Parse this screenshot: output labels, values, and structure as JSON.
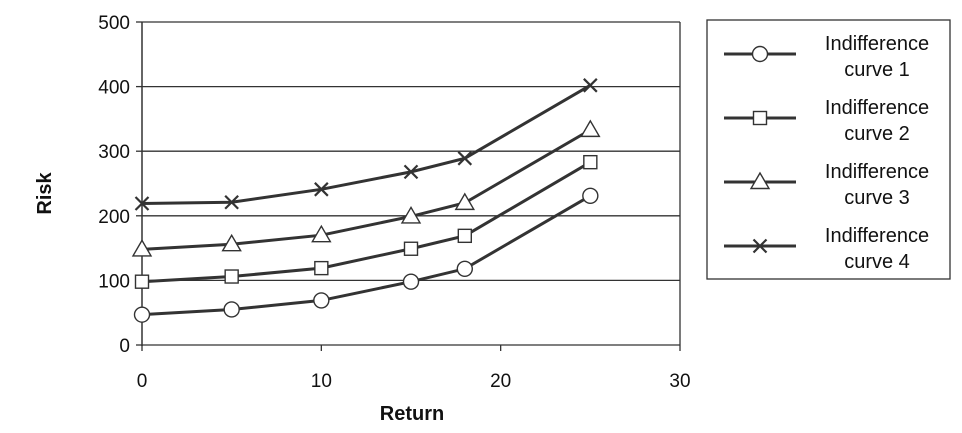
{
  "chart_data": {
    "type": "line",
    "title": "",
    "xlabel": "Return",
    "ylabel": "Risk",
    "xlim": [
      0,
      30
    ],
    "ylim": [
      0,
      500
    ],
    "xticks": [
      0,
      10,
      20,
      30
    ],
    "yticks": [
      0,
      100,
      200,
      300,
      400,
      500
    ],
    "grid": "horizontal",
    "legend_position": "right",
    "x": [
      0,
      5,
      10,
      15,
      18,
      25
    ],
    "series": [
      {
        "name": "Indifference curve 1",
        "label_lines": [
          "Indifference",
          "curve 1"
        ],
        "marker": "circle",
        "values": [
          47,
          55,
          69,
          98,
          118,
          231
        ]
      },
      {
        "name": "Indifference curve 2",
        "label_lines": [
          "Indifference",
          "curve 2"
        ],
        "marker": "square",
        "values": [
          98,
          106,
          119,
          149,
          169,
          283
        ]
      },
      {
        "name": "Indifference curve 3",
        "label_lines": [
          "Indifference",
          "curve 3"
        ],
        "marker": "triangle",
        "values": [
          148,
          156,
          170,
          199,
          220,
          333
        ]
      },
      {
        "name": "Indifference curve 4",
        "label_lines": [
          "Indifference",
          "curve 4"
        ],
        "marker": "x",
        "values": [
          219,
          221,
          241,
          268,
          289,
          402
        ]
      }
    ],
    "line_color": "#333333"
  }
}
